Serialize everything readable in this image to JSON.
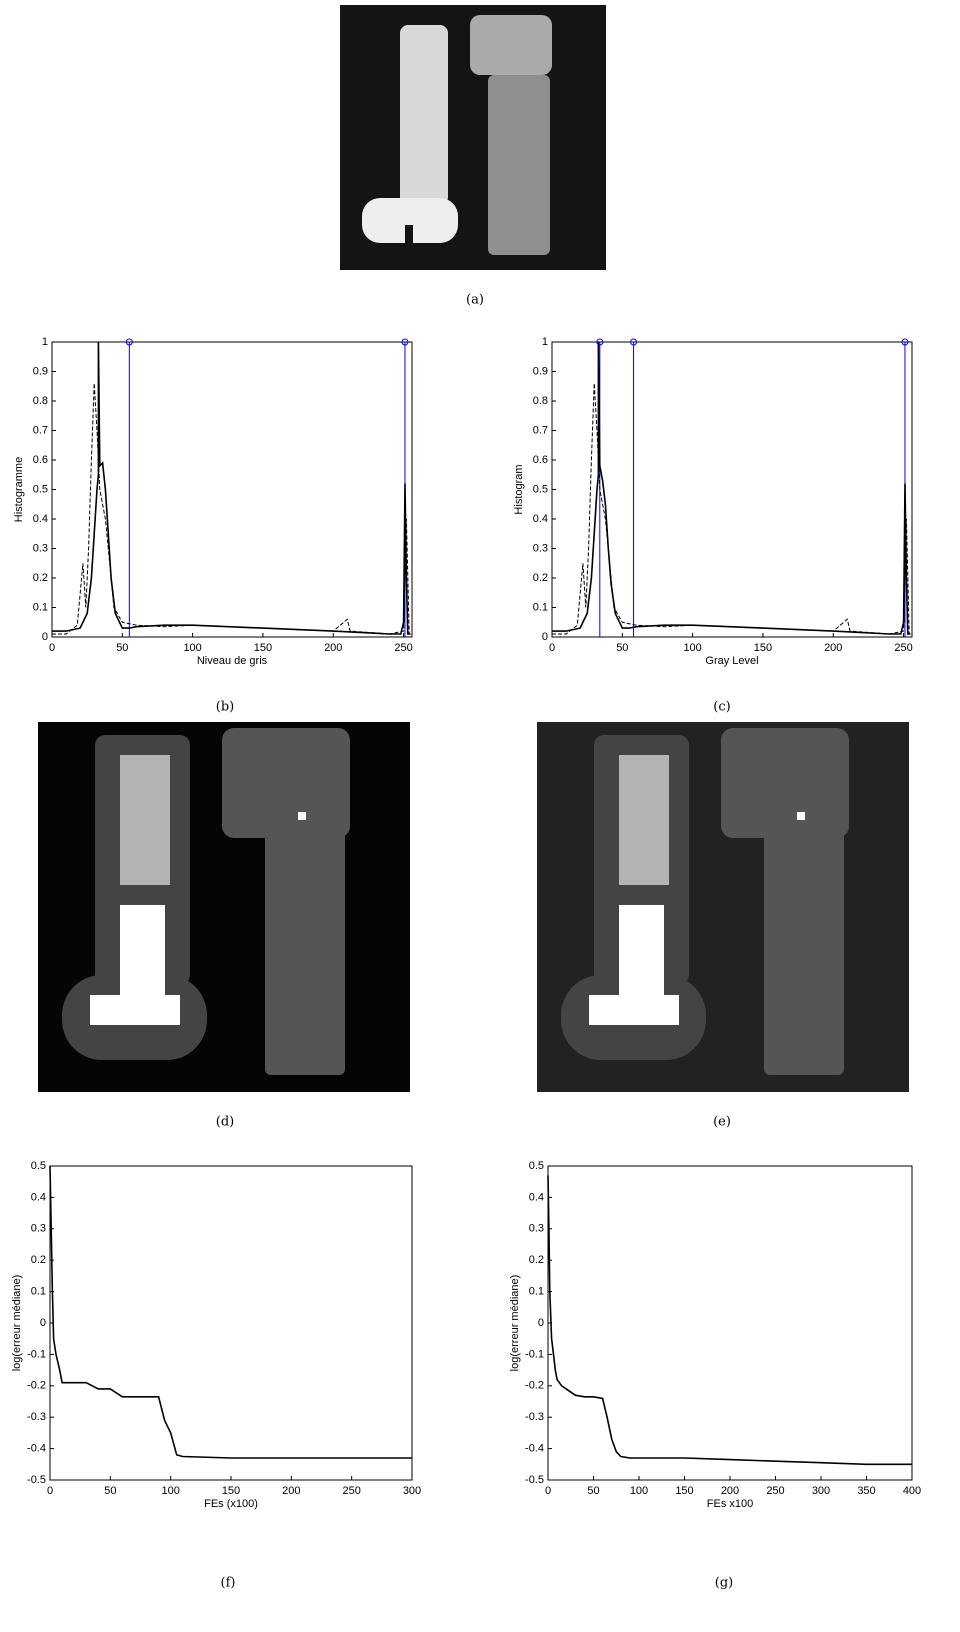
{
  "captions": [
    "(a)",
    "(b)",
    "(c)",
    "(d)",
    "(e)",
    "(f)",
    "(g)"
  ],
  "chart_data": [
    {
      "type": "line",
      "xlabel": "Niveau de gris",
      "ylabel": "Histogramme",
      "xlim": [
        0,
        256
      ],
      "ylim": [
        0,
        1
      ],
      "xticks": [
        0,
        50,
        100,
        150,
        200,
        250
      ],
      "yticks": [
        0,
        0.1,
        0.2,
        0.3,
        0.4,
        0.5,
        0.6,
        0.7,
        0.8,
        0.9,
        1
      ],
      "series": [
        {
          "color": "#000000",
          "dash": false,
          "x": [
            0,
            10,
            20,
            25,
            28,
            30,
            32,
            33,
            33,
            34,
            36,
            38,
            40,
            42,
            45,
            50,
            55,
            60,
            80,
            100,
            150,
            200,
            240,
            248,
            250,
            251,
            252,
            253,
            255
          ],
          "values": [
            0.02,
            0.02,
            0.03,
            0.08,
            0.2,
            0.35,
            0.5,
            0.55,
            1,
            0.58,
            0.59,
            0.5,
            0.35,
            0.2,
            0.08,
            0.03,
            0.03,
            0.035,
            0.04,
            0.04,
            0.03,
            0.02,
            0.01,
            0.01,
            0.05,
            0.52,
            0.2,
            0.01,
            0.01
          ]
        },
        {
          "color": "#000000",
          "dash": true,
          "x": [
            0,
            10,
            18,
            22,
            24,
            26,
            28,
            30,
            32,
            34,
            36,
            38,
            40,
            44,
            50,
            60,
            80,
            100,
            150,
            200,
            210,
            212,
            240,
            250,
            252,
            254
          ],
          "values": [
            0.01,
            0.01,
            0.04,
            0.25,
            0.1,
            0.3,
            0.6,
            0.86,
            0.7,
            0.5,
            0.45,
            0.4,
            0.3,
            0.1,
            0.05,
            0.04,
            0.035,
            0.04,
            0.03,
            0.02,
            0.06,
            0.02,
            0.01,
            0.02,
            0.4,
            0.01
          ]
        }
      ],
      "thresholds": {
        "color": "#0000ff",
        "values": [
          55,
          251
        ]
      }
    },
    {
      "type": "line",
      "xlabel": "Gray Level",
      "ylabel": "Histogram",
      "xlim": [
        0,
        256
      ],
      "ylim": [
        0,
        1
      ],
      "xticks": [
        0,
        50,
        100,
        150,
        200,
        250
      ],
      "yticks": [
        0,
        0.1,
        0.2,
        0.3,
        0.4,
        0.5,
        0.6,
        0.7,
        0.8,
        0.9,
        1
      ],
      "series": [
        {
          "color": "#000000",
          "dash": false,
          "x": [
            0,
            10,
            20,
            25,
            28,
            30,
            32,
            33,
            33,
            34,
            36,
            38,
            40,
            42,
            45,
            50,
            55,
            60,
            80,
            100,
            150,
            200,
            240,
            248,
            250,
            251,
            252,
            253,
            255
          ],
          "values": [
            0.02,
            0.02,
            0.03,
            0.08,
            0.2,
            0.35,
            0.5,
            0.55,
            1,
            0.58,
            0.53,
            0.45,
            0.3,
            0.18,
            0.08,
            0.03,
            0.03,
            0.035,
            0.04,
            0.04,
            0.03,
            0.02,
            0.01,
            0.01,
            0.05,
            0.52,
            0.2,
            0.01,
            0.01
          ]
        },
        {
          "color": "#000000",
          "dash": true,
          "x": [
            0,
            10,
            18,
            22,
            24,
            26,
            28,
            30,
            32,
            34,
            36,
            38,
            40,
            44,
            50,
            60,
            80,
            100,
            150,
            200,
            210,
            212,
            240,
            250,
            252,
            254
          ],
          "values": [
            0.01,
            0.01,
            0.04,
            0.25,
            0.1,
            0.3,
            0.6,
            0.86,
            0.7,
            0.5,
            0.45,
            0.4,
            0.3,
            0.1,
            0.05,
            0.04,
            0.035,
            0.04,
            0.03,
            0.02,
            0.06,
            0.02,
            0.01,
            0.02,
            0.4,
            0.01
          ]
        }
      ],
      "thresholds": {
        "color": "#0000ff",
        "values": [
          34,
          58,
          251
        ]
      }
    },
    {
      "type": "line",
      "xlabel": "FEs (x100)",
      "ylabel": "log(erreur médiane)",
      "xlim": [
        0,
        300
      ],
      "ylim": [
        -0.5,
        0.5
      ],
      "xticks": [
        0,
        50,
        100,
        150,
        200,
        250,
        300
      ],
      "yticks": [
        -0.5,
        -0.4,
        -0.3,
        -0.2,
        -0.1,
        0,
        0.1,
        0.2,
        0.3,
        0.4,
        0.5
      ],
      "series": [
        {
          "color": "#000000",
          "dash": false,
          "x": [
            0,
            1,
            2,
            3,
            5,
            8,
            10,
            15,
            20,
            30,
            40,
            50,
            60,
            70,
            80,
            90,
            95,
            100,
            105,
            110,
            150,
            200,
            250,
            300
          ],
          "values": [
            0.5,
            0.3,
            0.1,
            -0.05,
            -0.1,
            -0.15,
            -0.19,
            -0.19,
            -0.19,
            -0.19,
            -0.21,
            -0.21,
            -0.235,
            -0.235,
            -0.235,
            -0.235,
            -0.31,
            -0.35,
            -0.42,
            -0.425,
            -0.43,
            -0.43,
            -0.43,
            -0.43
          ]
        }
      ]
    },
    {
      "type": "line",
      "xlabel": "FEs x100",
      "ylabel": "log(erreur médiane)",
      "xlim": [
        0,
        400
      ],
      "ylim": [
        -0.5,
        0.5
      ],
      "xticks": [
        0,
        50,
        100,
        150,
        200,
        250,
        300,
        350,
        400
      ],
      "yticks": [
        -0.5,
        -0.4,
        -0.3,
        -0.2,
        -0.1,
        0,
        0.1,
        0.2,
        0.3,
        0.4,
        0.5
      ],
      "series": [
        {
          "color": "#000000",
          "dash": false,
          "x": [
            0,
            1,
            2,
            4,
            6,
            8,
            10,
            15,
            20,
            30,
            40,
            50,
            60,
            65,
            70,
            75,
            80,
            90,
            100,
            150,
            200,
            250,
            300,
            350,
            400
          ],
          "values": [
            0.47,
            0.3,
            0.1,
            -0.05,
            -0.1,
            -0.15,
            -0.18,
            -0.2,
            -0.21,
            -0.23,
            -0.235,
            -0.235,
            -0.24,
            -0.3,
            -0.37,
            -0.41,
            -0.425,
            -0.43,
            -0.43,
            -0.43,
            -0.435,
            -0.44,
            -0.445,
            -0.45,
            -0.45
          ]
        }
      ]
    }
  ]
}
